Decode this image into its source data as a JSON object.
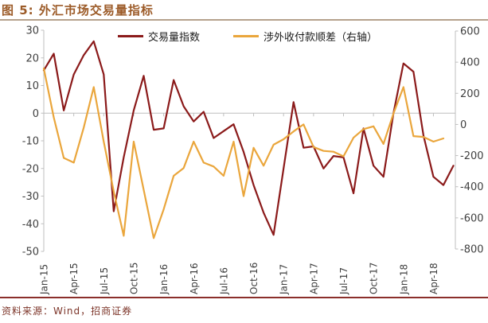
{
  "header": {
    "title": "图 5: 外汇市场交易量指标"
  },
  "footer": {
    "source": "资料来源：Wind，招商证券"
  },
  "colors": {
    "title_brown": "#9c5b28",
    "volume_line": "#8b1a1a",
    "surplus_line": "#eaa63c",
    "axis_text": "#404040",
    "axis_line": "#bfbfbf",
    "footer_text": "#7c3428"
  },
  "chart_data": {
    "type": "line",
    "title": "图 5: 外汇市场交易量指标",
    "legend_position": "top",
    "grid": "zero-line-only",
    "x": [
      "Jan-15",
      "Feb-15",
      "Mar-15",
      "Apr-15",
      "May-15",
      "Jun-15",
      "Jul-15",
      "Aug-15",
      "Sep-15",
      "Oct-15",
      "Nov-15",
      "Dec-15",
      "Jan-16",
      "Feb-16",
      "Mar-16",
      "Apr-16",
      "May-16",
      "Jun-16",
      "Jul-16",
      "Aug-16",
      "Sep-16",
      "Oct-16",
      "Nov-16",
      "Dec-16",
      "Jan-17",
      "Feb-17",
      "Mar-17",
      "Apr-17",
      "May-17",
      "Jun-17",
      "Jul-17",
      "Aug-17",
      "Sep-17",
      "Oct-17",
      "Nov-17",
      "Dec-17",
      "Jan-18",
      "Feb-18",
      "Mar-18",
      "Apr-18",
      "May-18",
      "Jun-18"
    ],
    "x_axis_ticks": [
      "Jan-15",
      "Apr-15",
      "Jul-15",
      "Oct-15",
      "Jan-16",
      "Apr-16",
      "Jul-16",
      "Oct-16",
      "Jan-17",
      "Apr-17",
      "Jul-17",
      "Oct-17",
      "Jan-18",
      "Apr-18"
    ],
    "left_axis": {
      "ticks": [
        30,
        20,
        10,
        0,
        -10,
        -20,
        -30,
        -40,
        -50
      ],
      "range": [
        -50,
        30
      ]
    },
    "right_axis": {
      "ticks": [
        600,
        400,
        200,
        0,
        -200,
        -400,
        -600,
        -800
      ],
      "range": [
        -800,
        600
      ]
    },
    "series": [
      {
        "name": "交易量指数",
        "axis": "left",
        "color": "#8b1a1a",
        "values": [
          15.5,
          21.5,
          1,
          14,
          21,
          26,
          14,
          -35.5,
          -16,
          1,
          13.5,
          -6,
          -5.5,
          12,
          2.5,
          -3,
          0.5,
          -9,
          -6.5,
          -4,
          -14,
          -26,
          -36,
          -44,
          -20,
          4,
          -12.5,
          -12,
          -20,
          -15.5,
          -16,
          -29,
          -5.5,
          -19,
          -23,
          0,
          18,
          15,
          -8,
          -23,
          -26,
          -19
        ]
      },
      {
        "name": "涉外收付款顺差（右轴）",
        "axis": "right",
        "color": "#eaa63c",
        "values": [
          360,
          45,
          -215,
          -245,
          -20,
          240,
          -110,
          -430,
          -715,
          -110,
          -420,
          -730,
          -545,
          -330,
          -280,
          -110,
          -245,
          -270,
          -330,
          -110,
          -460,
          -150,
          -265,
          -130,
          -95,
          -45,
          0,
          -145,
          -170,
          -175,
          -205,
          -85,
          -30,
          -12,
          -125,
          70,
          240,
          -75,
          -80,
          -110,
          -90,
          null
        ]
      }
    ]
  }
}
